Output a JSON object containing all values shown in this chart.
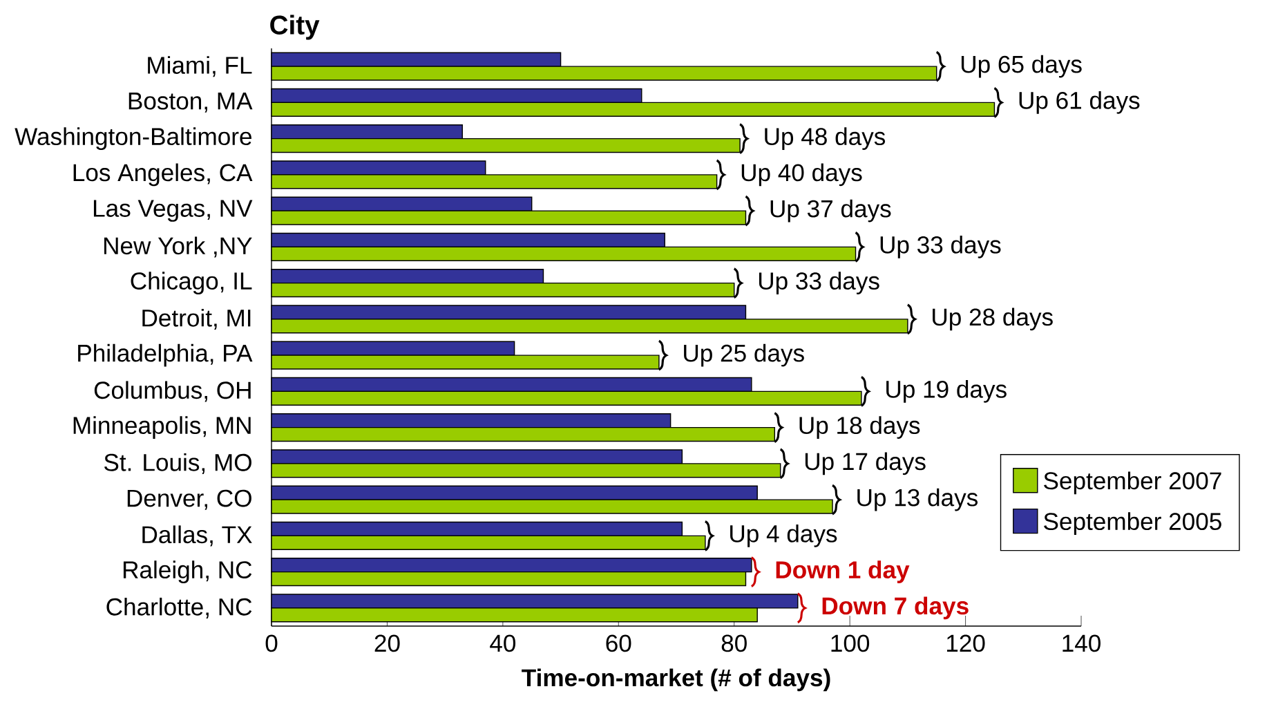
{
  "chart_data": {
    "type": "bar",
    "orientation": "horizontal",
    "ylabel": "City",
    "xlabel": "Time-on-market (# of days)",
    "categories": [
      "Miami, FL",
      "Boston, MA",
      "Washington-Baltimore",
      "Los Angeles, CA",
      "Las Vegas, NV",
      "New York ,NY",
      "Chicago, IL",
      "Detroit, MI",
      "Philadelphia, PA",
      "Columbus, OH",
      "Minneapolis, MN",
      "St. Louis, MO",
      "Denver, CO",
      "Dallas, TX",
      "Raleigh, NC",
      "Charlotte, NC"
    ],
    "series": [
      {
        "name": "September 2005",
        "color": "#333399",
        "values": [
          50,
          64,
          33,
          37,
          45,
          68,
          47,
          82,
          42,
          83,
          69,
          71,
          84,
          71,
          83,
          91
        ]
      },
      {
        "name": "September 2007",
        "color": "#99cc00",
        "values": [
          115,
          125,
          81,
          77,
          82,
          101,
          80,
          110,
          67,
          102,
          87,
          88,
          97,
          75,
          82,
          84
        ]
      }
    ],
    "xlim": [
      0,
      140
    ],
    "xticks": [
      0,
      20,
      40,
      60,
      80,
      100,
      120,
      140
    ],
    "legend": "right",
    "annotations": [
      {
        "text": "Up 65 days",
        "x": 115,
        "y": "Miami, FL"
      },
      {
        "text": "Up 61 days",
        "x": 125,
        "y": "Boston, MA"
      },
      {
        "text": "Up 48 days",
        "x": 81,
        "y": "Washington-Baltimore"
      },
      {
        "text": "Up 40 days",
        "x": 77,
        "y": "Los Angeles, CA"
      },
      {
        "text": "Up 37 days",
        "x": 82,
        "y": "Las Vegas, NV"
      },
      {
        "text": "Up 33 days",
        "x": 101,
        "y": "New York ,NY"
      },
      {
        "text": "Up 33 days",
        "x": 80,
        "y": "Chicago, IL"
      },
      {
        "text": "Up 28 days",
        "x": 110,
        "y": "Detroit, MI"
      },
      {
        "text": "Up 25 days",
        "x": 67,
        "y": "Philadelphia, PA"
      },
      {
        "text": "Up 19 days",
        "x": 102,
        "y": "Columbus, OH"
      },
      {
        "text": "Up 18 days",
        "x": 87,
        "y": "Minneapolis, MN"
      },
      {
        "text": "Up 17 days",
        "x": 88,
        "y": "St. Louis, MO"
      },
      {
        "text": "Up 13 days",
        "x": 97,
        "y": "Denver, CO"
      },
      {
        "text": "Up 4 days",
        "x": 75,
        "y": "Dallas, TX"
      },
      {
        "text": "Down 1 day",
        "x": 83,
        "y": "Raleigh, NC"
      },
      {
        "text": "Down 7 days",
        "x": 91,
        "y": "Charlotte, NC"
      }
    ]
  }
}
